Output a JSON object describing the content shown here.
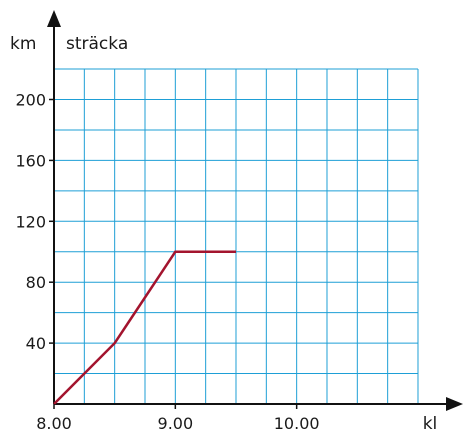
{
  "chart_data": {
    "type": "line",
    "ylabel": "sträcka",
    "yunit": "km",
    "xlabel": "kl",
    "x_ticks": [
      "8.00",
      "9.00",
      "10.00"
    ],
    "y_ticks": [
      "40",
      "80",
      "120",
      "160",
      "200"
    ],
    "xlim": [
      8.0,
      11.0
    ],
    "ylim": [
      0,
      220
    ],
    "grid": true,
    "series": [
      {
        "color": "#a3142e",
        "points": [
          {
            "x": 8.0,
            "y": 0
          },
          {
            "x": 8.5,
            "y": 40
          },
          {
            "x": 9.0,
            "y": 100
          },
          {
            "x": 9.5,
            "y": 100
          }
        ]
      }
    ]
  },
  "colors": {
    "grid": "#1e9fd6",
    "axis": "#111111"
  }
}
